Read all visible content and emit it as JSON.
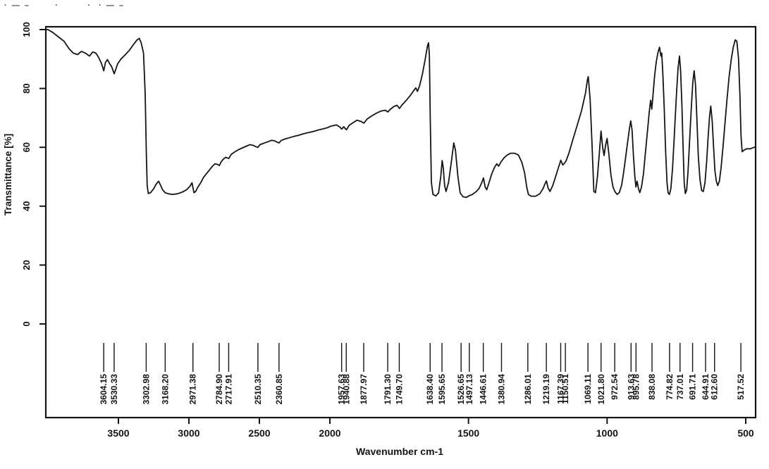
{
  "scan_marks_text": "· — –       ·        ·  · — –",
  "colors": {
    "line": "#141414",
    "axis": "#141414",
    "text": "#141414",
    "background": "#ffffff"
  },
  "chart_data": {
    "type": "line",
    "title": "",
    "xlabel": "Wavenumber cm-1",
    "ylabel": "Transmittance [%]",
    "x_ticks": [
      "3500",
      "3000",
      "2500",
      "2000",
      "1500",
      "1000",
      "500"
    ],
    "x_tick_values": [
      3500,
      3000,
      2500,
      2000,
      1500,
      1000,
      500
    ],
    "y_ticks": [
      "100",
      "80",
      "60",
      "40",
      "20",
      "0"
    ],
    "y_tick_values": [
      100,
      80,
      60,
      40,
      20,
      0
    ],
    "ylim": [
      0,
      100
    ],
    "x_axis_direction": "reversed",
    "x_axis_split": "scale above 2000 cm-1 compressed ~2x relative to below 2000",
    "x_range": [
      4035,
      465
    ],
    "grid": false,
    "legend": "none",
    "peak_labels": [
      "3604.15",
      "3530.33",
      "3302.98",
      "3168.20",
      "2971.38",
      "2784.90",
      "2717.91",
      "2510.35",
      "2360.85",
      "1957.63",
      "1940.88",
      "1877.97",
      "1791.30",
      "1749.70",
      "1638.40",
      "1595.65",
      "1526.65",
      "1497.13",
      "1446.61",
      "1380.94",
      "1286.01",
      "1219.19",
      "1167.39",
      "1150.51",
      "1069.11",
      "1021.80",
      "972.54",
      "913.63",
      "895.78",
      "838.08",
      "774.82",
      "737.01",
      "691.71",
      "644.91",
      "612.60",
      "517.52"
    ],
    "series": [
      {
        "name": "IR transmittance spectrum",
        "points": [
          [
            4035,
            100
          ],
          [
            4000,
            100
          ],
          [
            3965,
            99
          ],
          [
            3925,
            97.5
          ],
          [
            3885,
            96
          ],
          [
            3850,
            93.5
          ],
          [
            3820,
            92
          ],
          [
            3790,
            91.5
          ],
          [
            3762,
            92.6
          ],
          [
            3735,
            92
          ],
          [
            3705,
            91
          ],
          [
            3682,
            92.4
          ],
          [
            3660,
            92
          ],
          [
            3640,
            90.5
          ],
          [
            3620,
            88.5
          ],
          [
            3604,
            86
          ],
          [
            3592,
            88.8
          ],
          [
            3578,
            89.8
          ],
          [
            3562,
            88.4
          ],
          [
            3548,
            87.4
          ],
          [
            3530,
            85
          ],
          [
            3518,
            86.6
          ],
          [
            3505,
            88.4
          ],
          [
            3482,
            90
          ],
          [
            3452,
            91.4
          ],
          [
            3422,
            93
          ],
          [
            3392,
            95
          ],
          [
            3367,
            96.5
          ],
          [
            3352,
            97
          ],
          [
            3338,
            95.4
          ],
          [
            3322,
            92
          ],
          [
            3310,
            78
          ],
          [
            3302,
            58
          ],
          [
            3296,
            47
          ],
          [
            3288,
            44.3
          ],
          [
            3272,
            44.6
          ],
          [
            3252,
            45.8
          ],
          [
            3232,
            47.5
          ],
          [
            3215,
            48.5
          ],
          [
            3200,
            47
          ],
          [
            3186,
            45.5
          ],
          [
            3168,
            44.6
          ],
          [
            3146,
            44.2
          ],
          [
            3116,
            44
          ],
          [
            3082,
            44.2
          ],
          [
            3046,
            44.8
          ],
          [
            3016,
            45.6
          ],
          [
            2992,
            46.8
          ],
          [
            2978,
            48
          ],
          [
            2971,
            46.2
          ],
          [
            2964,
            44.6
          ],
          [
            2952,
            45
          ],
          [
            2936,
            46.5
          ],
          [
            2916,
            48
          ],
          [
            2896,
            49.8
          ],
          [
            2876,
            51
          ],
          [
            2856,
            52.2
          ],
          [
            2836,
            53.4
          ],
          [
            2816,
            54.4
          ],
          [
            2798,
            54.2
          ],
          [
            2784,
            53.8
          ],
          [
            2772,
            55
          ],
          [
            2756,
            56
          ],
          [
            2738,
            56.6
          ],
          [
            2717,
            56.2
          ],
          [
            2700,
            57.6
          ],
          [
            2676,
            58.4
          ],
          [
            2648,
            59.2
          ],
          [
            2620,
            59.8
          ],
          [
            2592,
            60.4
          ],
          [
            2566,
            60.9
          ],
          [
            2540,
            60.6
          ],
          [
            2524,
            60.2
          ],
          [
            2510,
            60
          ],
          [
            2496,
            60.9
          ],
          [
            2468,
            61.4
          ],
          [
            2440,
            61.9
          ],
          [
            2412,
            62.4
          ],
          [
            2392,
            62.2
          ],
          [
            2376,
            61.8
          ],
          [
            2360,
            61.5
          ],
          [
            2346,
            62.3
          ],
          [
            2320,
            62.8
          ],
          [
            2290,
            63.2
          ],
          [
            2256,
            63.7
          ],
          [
            2222,
            64.1
          ],
          [
            2188,
            64.6
          ],
          [
            2152,
            65
          ],
          [
            2116,
            65.4
          ],
          [
            2080,
            65.9
          ],
          [
            2046,
            66.3
          ],
          [
            2016,
            66.7
          ],
          [
            1996,
            67.2
          ],
          [
            1976,
            67.6
          ],
          [
            1963,
            66.8
          ],
          [
            1957,
            66.2
          ],
          [
            1950,
            67
          ],
          [
            1944,
            66.3
          ],
          [
            1940,
            66
          ],
          [
            1930,
            67.5
          ],
          [
            1916,
            68.4
          ],
          [
            1902,
            69.2
          ],
          [
            1888,
            68.8
          ],
          [
            1877,
            68.2
          ],
          [
            1866,
            69.6
          ],
          [
            1850,
            70.6
          ],
          [
            1832,
            71.6
          ],
          [
            1816,
            72.3
          ],
          [
            1800,
            72.6
          ],
          [
            1791,
            72
          ],
          [
            1782,
            72.9
          ],
          [
            1770,
            73.8
          ],
          [
            1758,
            74.3
          ],
          [
            1749,
            73.2
          ],
          [
            1738,
            74.6
          ],
          [
            1724,
            76
          ],
          [
            1710,
            77.6
          ],
          [
            1698,
            79.2
          ],
          [
            1690,
            80.2
          ],
          [
            1684,
            79
          ],
          [
            1676,
            81
          ],
          [
            1666,
            85
          ],
          [
            1656,
            90
          ],
          [
            1648,
            94.5
          ],
          [
            1644,
            95.5
          ],
          [
            1641,
            91
          ],
          [
            1638,
            70
          ],
          [
            1634,
            48
          ],
          [
            1628,
            44
          ],
          [
            1618,
            43.5
          ],
          [
            1608,
            44.5
          ],
          [
            1600,
            50
          ],
          [
            1595,
            55.5
          ],
          [
            1591,
            53
          ],
          [
            1586,
            47
          ],
          [
            1581,
            45
          ],
          [
            1572,
            48
          ],
          [
            1562,
            55
          ],
          [
            1553,
            61.5
          ],
          [
            1547,
            59
          ],
          [
            1538,
            50
          ],
          [
            1530,
            44.5
          ],
          [
            1520,
            43.2
          ],
          [
            1508,
            43
          ],
          [
            1497,
            43.6
          ],
          [
            1486,
            44
          ],
          [
            1474,
            44.8
          ],
          [
            1462,
            46
          ],
          [
            1452,
            48
          ],
          [
            1446,
            49.6
          ],
          [
            1440,
            46.5
          ],
          [
            1434,
            45.6
          ],
          [
            1426,
            48
          ],
          [
            1416,
            51
          ],
          [
            1406,
            53.2
          ],
          [
            1398,
            54.4
          ],
          [
            1391,
            53.6
          ],
          [
            1383,
            55
          ],
          [
            1372,
            56.4
          ],
          [
            1360,
            57.4
          ],
          [
            1348,
            58
          ],
          [
            1334,
            58
          ],
          [
            1320,
            57.4
          ],
          [
            1308,
            55
          ],
          [
            1298,
            51.5
          ],
          [
            1290,
            46.5
          ],
          [
            1284,
            44
          ],
          [
            1274,
            43.4
          ],
          [
            1258,
            43.4
          ],
          [
            1243,
            44.2
          ],
          [
            1231,
            46
          ],
          [
            1224,
            47.6
          ],
          [
            1219,
            48.6
          ],
          [
            1213,
            46.2
          ],
          [
            1206,
            45
          ],
          [
            1196,
            47
          ],
          [
            1186,
            50
          ],
          [
            1176,
            53
          ],
          [
            1167,
            55.6
          ],
          [
            1160,
            54
          ],
          [
            1154,
            54.6
          ],
          [
            1148,
            55.4
          ],
          [
            1138,
            58
          ],
          [
            1124,
            62.5
          ],
          [
            1108,
            67.5
          ],
          [
            1092,
            72.5
          ],
          [
            1078,
            78.5
          ],
          [
            1071,
            83
          ],
          [
            1068,
            84
          ],
          [
            1061,
            76
          ],
          [
            1054,
            60
          ],
          [
            1048,
            45
          ],
          [
            1042,
            44.6
          ],
          [
            1035,
            50
          ],
          [
            1028,
            58
          ],
          [
            1022,
            65.5
          ],
          [
            1016,
            60
          ],
          [
            1011,
            57.2
          ],
          [
            1005,
            61
          ],
          [
            1000,
            63
          ],
          [
            994,
            58
          ],
          [
            986,
            50.5
          ],
          [
            979,
            46.6
          ],
          [
            972,
            45
          ],
          [
            964,
            44
          ],
          [
            956,
            44.6
          ],
          [
            948,
            47
          ],
          [
            941,
            51
          ],
          [
            934,
            56
          ],
          [
            927,
            61
          ],
          [
            920,
            66
          ],
          [
            915,
            69
          ],
          [
            910,
            66
          ],
          [
            905,
            57
          ],
          [
            900,
            50
          ],
          [
            896,
            46.5
          ],
          [
            892,
            48.5
          ],
          [
            887,
            46
          ],
          [
            882,
            44.6
          ],
          [
            876,
            46.5
          ],
          [
            869,
            51
          ],
          [
            862,
            58
          ],
          [
            855,
            65
          ],
          [
            848,
            72
          ],
          [
            843,
            76
          ],
          [
            839,
            73
          ],
          [
            835,
            77
          ],
          [
            829,
            84
          ],
          [
            823,
            89
          ],
          [
            817,
            92
          ],
          [
            811,
            94
          ],
          [
            806,
            91
          ],
          [
            803,
            92
          ],
          [
            799,
            85
          ],
          [
            794,
            73
          ],
          [
            789,
            59
          ],
          [
            784,
            48
          ],
          [
            780,
            44.5
          ],
          [
            775,
            44
          ],
          [
            770,
            46
          ],
          [
            764,
            53
          ],
          [
            757,
            65
          ],
          [
            750,
            78
          ],
          [
            744,
            87
          ],
          [
            739,
            91
          ],
          [
            735,
            86
          ],
          [
            730,
            74
          ],
          [
            726,
            60
          ],
          [
            722,
            48
          ],
          [
            718,
            44.3
          ],
          [
            713,
            45.5
          ],
          [
            708,
            52
          ],
          [
            702,
            63
          ],
          [
            696,
            74
          ],
          [
            691,
            82
          ],
          [
            686,
            86
          ],
          [
            681,
            81
          ],
          [
            676,
            69
          ],
          [
            671,
            57
          ],
          [
            665,
            49
          ],
          [
            659,
            45.3
          ],
          [
            653,
            45
          ],
          [
            647,
            48
          ],
          [
            641,
            55
          ],
          [
            636,
            63
          ],
          [
            631,
            70
          ],
          [
            626,
            74
          ],
          [
            621,
            69
          ],
          [
            616,
            60
          ],
          [
            611,
            52
          ],
          [
            606,
            48.5
          ],
          [
            601,
            47
          ],
          [
            595,
            48.5
          ],
          [
            589,
            53
          ],
          [
            582,
            60
          ],
          [
            575,
            68
          ],
          [
            568,
            76
          ],
          [
            560,
            84
          ],
          [
            552,
            90
          ],
          [
            545,
            94
          ],
          [
            538,
            96.5
          ],
          [
            532,
            96
          ],
          [
            526,
            90
          ],
          [
            521,
            78
          ],
          [
            517,
            64
          ],
          [
            513,
            58.5
          ],
          [
            507,
            59
          ],
          [
            497,
            59.5
          ],
          [
            484,
            59.5
          ],
          [
            470,
            60
          ],
          [
            465,
            60
          ]
        ]
      }
    ]
  }
}
